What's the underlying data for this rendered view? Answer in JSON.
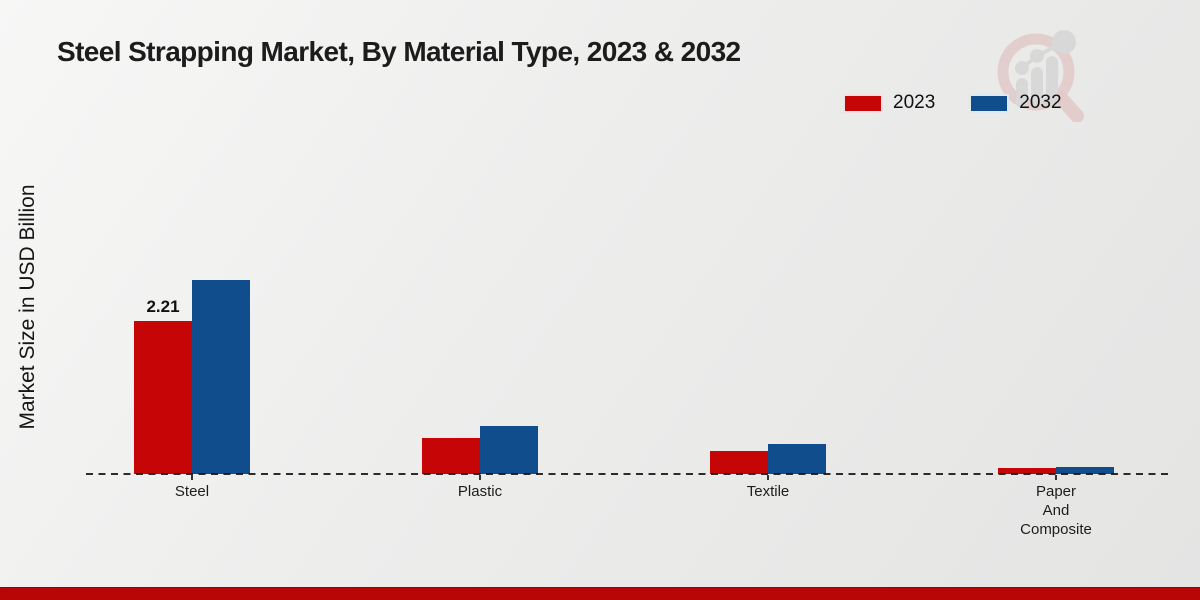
{
  "chart_data": {
    "type": "bar",
    "title": "Steel Strapping Market, By Material Type, 2023 & 2032",
    "ylabel": "Market Size in USD Billion",
    "categories": [
      "Steel",
      "Plastic",
      "Textile",
      "Paper And Composite"
    ],
    "category_lines": [
      [
        "Steel"
      ],
      [
        "Plastic"
      ],
      [
        "Textile"
      ],
      [
        "Paper",
        "And",
        "Composite"
      ]
    ],
    "series": [
      {
        "name": "2023",
        "color": "#c60606",
        "values": [
          2.21,
          0.52,
          0.33,
          0.08
        ]
      },
      {
        "name": "2032",
        "color": "#0f4d8c",
        "values": [
          2.8,
          0.69,
          0.43,
          0.1
        ]
      }
    ],
    "value_labels": [
      {
        "series_index": 0,
        "category_index": 0,
        "text": "2.21"
      }
    ],
    "ylim": [
      0,
      3
    ],
    "grid": false,
    "legend_position": "top-right",
    "baseline_style": "dashed"
  },
  "legend": {
    "items": [
      "2023",
      "2032"
    ]
  },
  "colors": {
    "bar_2023": "#c60606",
    "bar_2032": "#0f4d8c",
    "axis": "#111111",
    "footer_band": "#b80606",
    "watermark_pink": "#d9a9a9",
    "watermark_gray": "#c9c9c9"
  },
  "watermark": {
    "icon": "magnifier-bar-chart-logo"
  }
}
